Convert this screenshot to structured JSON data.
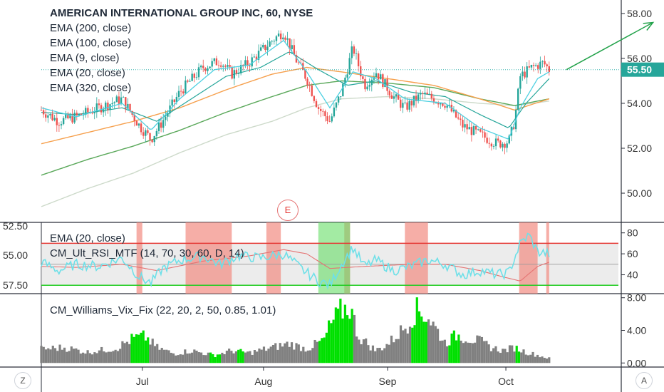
{
  "header": {
    "title": "AMERICAN INTERNATIONAL GROUP INC, 60, NYSE",
    "indicators": [
      "EMA (200, close)",
      "EMA (100, close)",
      "EMA (9, close)",
      "EMA (20, close)",
      "EMA (320, close)"
    ]
  },
  "rsi_panel": {
    "legend": [
      "EMA (20, close)",
      "CM_Ult_RSI_MTF (14, 70, 30, 60, D, 14)"
    ]
  },
  "vix_panel": {
    "legend": "CM_Williams_Vix_Fix (22, 20, 2, 50, 0.85, 1.01)"
  },
  "earnings_marker": "E",
  "bottom_buttons": {
    "left": "Z",
    "right": "A"
  },
  "price_label": "55.50",
  "colors": {
    "up": "#26a69a",
    "down": "#ef5350",
    "ema9": "#4dd0e1",
    "ema20": "#26a69a",
    "ema100": "#f6a04d",
    "ema200": "#5aa85a",
    "ema320": "#c8d6c4",
    "rsi": "#6ee0e8",
    "rsi_ema": "#e57373",
    "vix": "#808080",
    "vix_hi": "#00e000",
    "arrow": "#22a24a",
    "price_line": "#3fb6b0"
  },
  "chart_data": [
    {
      "type": "candlestick",
      "title": "AMERICAN INTERNATIONAL GROUP INC, 60, NYSE",
      "x_ticks": [
        "Jul",
        "Aug",
        "Sep",
        "Oct"
      ],
      "y_ticks": [
        "50.00",
        "52.00",
        "54.00",
        "56.00",
        "58.00"
      ],
      "ylim": [
        48.7,
        58.6
      ],
      "last_price": 55.5,
      "price_path": [
        [
          0,
          53.7
        ],
        [
          0.03,
          53.2
        ],
        [
          0.06,
          53.4
        ],
        [
          0.1,
          53.8
        ],
        [
          0.14,
          54.2
        ],
        [
          0.17,
          53.0
        ],
        [
          0.19,
          52.4
        ],
        [
          0.21,
          53.2
        ],
        [
          0.24,
          54.5
        ],
        [
          0.28,
          55.6
        ],
        [
          0.31,
          55.9
        ],
        [
          0.33,
          55.3
        ],
        [
          0.36,
          55.8
        ],
        [
          0.4,
          56.8
        ],
        [
          0.42,
          57.2
        ],
        [
          0.44,
          56.0
        ],
        [
          0.46,
          55.1
        ],
        [
          0.48,
          53.8
        ],
        [
          0.5,
          53.2
        ],
        [
          0.52,
          54.5
        ],
        [
          0.54,
          56.5
        ],
        [
          0.56,
          54.8
        ],
        [
          0.58,
          55.4
        ],
        [
          0.61,
          54.3
        ],
        [
          0.63,
          53.8
        ],
        [
          0.66,
          54.4
        ],
        [
          0.7,
          54.0
        ],
        [
          0.73,
          53.0
        ],
        [
          0.76,
          52.6
        ],
        [
          0.79,
          52.2
        ],
        [
          0.81,
          52.3
        ],
        [
          0.82,
          53.2
        ],
        [
          0.83,
          55.2
        ],
        [
          0.85,
          55.6
        ],
        [
          0.87,
          55.8
        ],
        [
          0.88,
          55.5
        ]
      ],
      "ema9": [
        [
          0,
          53.8
        ],
        [
          0.06,
          53.4
        ],
        [
          0.14,
          54.0
        ],
        [
          0.19,
          52.8
        ],
        [
          0.24,
          54.2
        ],
        [
          0.3,
          55.5
        ],
        [
          0.36,
          55.7
        ],
        [
          0.42,
          56.8
        ],
        [
          0.46,
          55.4
        ],
        [
          0.5,
          53.8
        ],
        [
          0.54,
          55.4
        ],
        [
          0.58,
          55.1
        ],
        [
          0.63,
          54.2
        ],
        [
          0.7,
          54.0
        ],
        [
          0.76,
          52.9
        ],
        [
          0.81,
          52.4
        ],
        [
          0.83,
          53.8
        ],
        [
          0.86,
          55.1
        ],
        [
          0.88,
          55.4
        ]
      ],
      "ema20": [
        [
          0,
          53.6
        ],
        [
          0.06,
          53.5
        ],
        [
          0.14,
          53.8
        ],
        [
          0.2,
          53.2
        ],
        [
          0.26,
          54.2
        ],
        [
          0.32,
          55.2
        ],
        [
          0.38,
          55.6
        ],
        [
          0.43,
          56.3
        ],
        [
          0.48,
          55.5
        ],
        [
          0.53,
          54.8
        ],
        [
          0.58,
          55.0
        ],
        [
          0.64,
          54.5
        ],
        [
          0.7,
          54.3
        ],
        [
          0.76,
          53.5
        ],
        [
          0.81,
          52.9
        ],
        [
          0.84,
          54.0
        ],
        [
          0.88,
          55.1
        ]
      ],
      "ema100": [
        [
          0,
          52.2
        ],
        [
          0.08,
          52.7
        ],
        [
          0.16,
          53.2
        ],
        [
          0.24,
          53.8
        ],
        [
          0.32,
          54.6
        ],
        [
          0.4,
          55.3
        ],
        [
          0.46,
          55.6
        ],
        [
          0.52,
          55.4
        ],
        [
          0.6,
          55.1
        ],
        [
          0.68,
          54.8
        ],
        [
          0.76,
          54.2
        ],
        [
          0.82,
          53.7
        ],
        [
          0.88,
          54.2
        ]
      ],
      "ema200": [
        [
          0,
          50.8
        ],
        [
          0.08,
          51.5
        ],
        [
          0.16,
          52.1
        ],
        [
          0.24,
          52.8
        ],
        [
          0.32,
          53.6
        ],
        [
          0.4,
          54.3
        ],
        [
          0.46,
          54.8
        ],
        [
          0.52,
          55.0
        ],
        [
          0.6,
          54.9
        ],
        [
          0.68,
          54.7
        ],
        [
          0.76,
          54.2
        ],
        [
          0.82,
          53.9
        ],
        [
          0.88,
          54.2
        ]
      ],
      "ema320": [
        [
          0,
          49.4
        ],
        [
          0.08,
          50.2
        ],
        [
          0.16,
          50.9
        ],
        [
          0.24,
          51.8
        ],
        [
          0.32,
          52.6
        ],
        [
          0.4,
          53.2
        ],
        [
          0.46,
          53.8
        ],
        [
          0.52,
          54.2
        ],
        [
          0.6,
          54.3
        ],
        [
          0.68,
          54.2
        ],
        [
          0.76,
          54.0
        ],
        [
          0.82,
          53.9
        ],
        [
          0.88,
          54.1
        ]
      ],
      "projection_arrow": [
        [
          0.91,
          55.5
        ],
        [
          1.06,
          57.6
        ]
      ]
    },
    {
      "type": "line",
      "title": "CM_Ult_RSI_MTF (14, 70, 30, 60, D, 14)",
      "y_ticks": [
        "40",
        "60",
        "80"
      ],
      "ylim": [
        22,
        90
      ],
      "upper_band": 70,
      "lower_band": 30,
      "mid_line": 50,
      "price_scale_ticks": [
        "52.50",
        "55.00",
        "57.50"
      ],
      "rsi_path": [
        [
          0,
          52
        ],
        [
          0.03,
          44
        ],
        [
          0.06,
          50
        ],
        [
          0.1,
          48
        ],
        [
          0.14,
          56
        ],
        [
          0.17,
          38
        ],
        [
          0.19,
          32
        ],
        [
          0.21,
          46
        ],
        [
          0.24,
          54
        ],
        [
          0.28,
          58
        ],
        [
          0.31,
          50
        ],
        [
          0.34,
          58
        ],
        [
          0.38,
          56
        ],
        [
          0.42,
          60
        ],
        [
          0.45,
          46
        ],
        [
          0.48,
          34
        ],
        [
          0.5,
          30
        ],
        [
          0.52,
          50
        ],
        [
          0.54,
          66
        ],
        [
          0.56,
          48
        ],
        [
          0.58,
          54
        ],
        [
          0.61,
          44
        ],
        [
          0.64,
          48
        ],
        [
          0.67,
          54
        ],
        [
          0.7,
          50
        ],
        [
          0.73,
          40
        ],
        [
          0.76,
          44
        ],
        [
          0.79,
          40
        ],
        [
          0.81,
          42
        ],
        [
          0.83,
          70
        ],
        [
          0.845,
          78
        ],
        [
          0.86,
          62
        ],
        [
          0.88,
          60
        ]
      ],
      "rsi_ema_path": [
        [
          0,
          48
        ],
        [
          0.06,
          47
        ],
        [
          0.14,
          50
        ],
        [
          0.2,
          44
        ],
        [
          0.28,
          53
        ],
        [
          0.36,
          58
        ],
        [
          0.42,
          64
        ],
        [
          0.46,
          60
        ],
        [
          0.5,
          46
        ],
        [
          0.56,
          48
        ],
        [
          0.64,
          50
        ],
        [
          0.7,
          50
        ],
        [
          0.76,
          44
        ],
        [
          0.8,
          38
        ],
        [
          0.83,
          34
        ],
        [
          0.86,
          48
        ],
        [
          0.88,
          52
        ]
      ],
      "overbought_zones": [
        [
          0.165,
          0.175
        ],
        [
          0.25,
          0.33
        ],
        [
          0.39,
          0.415
        ],
        [
          0.525,
          0.535
        ],
        [
          0.63,
          0.67
        ],
        [
          0.828,
          0.86
        ],
        [
          0.875,
          0.88
        ]
      ],
      "oversold_zones": [
        [
          0.48,
          0.535
        ]
      ]
    },
    {
      "type": "bar",
      "title": "CM_Williams_Vix_Fix (22, 20, 2, 50, 0.85, 1.01)",
      "y_ticks": [
        "0.00",
        "4.00",
        "8.00"
      ],
      "ylim": [
        -0.5,
        8.5
      ],
      "vix_profile": [
        [
          0,
          1.8
        ],
        [
          0.04,
          2.0
        ],
        [
          0.08,
          1.4
        ],
        [
          0.13,
          1.9
        ],
        [
          0.16,
          3.2
        ],
        [
          0.18,
          3.4
        ],
        [
          0.2,
          2.0
        ],
        [
          0.23,
          1.2
        ],
        [
          0.26,
          1.6
        ],
        [
          0.3,
          1.0
        ],
        [
          0.33,
          1.6
        ],
        [
          0.36,
          1.3
        ],
        [
          0.4,
          2.0
        ],
        [
          0.43,
          2.5
        ],
        [
          0.46,
          1.8
        ],
        [
          0.49,
          3.0
        ],
        [
          0.5,
          4.8
        ],
        [
          0.52,
          6.8
        ],
        [
          0.535,
          7.2
        ],
        [
          0.55,
          3.4
        ],
        [
          0.58,
          1.6
        ],
        [
          0.6,
          2.4
        ],
        [
          0.63,
          4.6
        ],
        [
          0.65,
          6.8
        ],
        [
          0.67,
          6.0
        ],
        [
          0.7,
          2.6
        ],
        [
          0.72,
          3.6
        ],
        [
          0.74,
          3.2
        ],
        [
          0.76,
          2.8
        ],
        [
          0.78,
          2.0
        ],
        [
          0.8,
          1.6
        ],
        [
          0.82,
          2.0
        ],
        [
          0.84,
          1.4
        ],
        [
          0.86,
          1.0
        ],
        [
          0.88,
          0.6
        ]
      ],
      "highlight_ranges": [
        [
          0.155,
          0.185
        ],
        [
          0.29,
          0.31
        ],
        [
          0.34,
          0.35
        ],
        [
          0.48,
          0.54
        ],
        [
          0.64,
          0.67
        ],
        [
          0.705,
          0.725
        ],
        [
          0.82,
          0.83
        ]
      ]
    }
  ]
}
